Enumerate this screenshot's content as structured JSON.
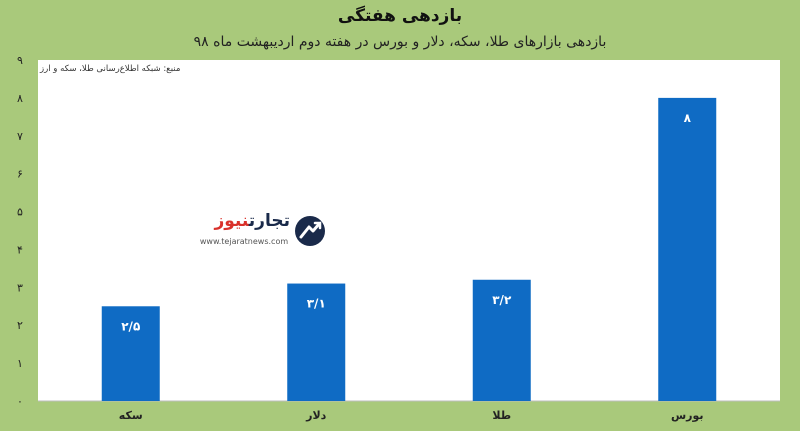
{
  "chart_data": {
    "type": "bar",
    "title": "بازدهی هفتگی",
    "subtitle": "بازدهی بازارهای طلا، سکه، دلار و بورس در هفته دوم اردیبهشت ماه ۹۸",
    "source_note": "منبع: شبکه اطلاع‌رسانی طلا، سکه و ارز",
    "categories": [
      "سکه",
      "دلار",
      "طلا",
      "بورس"
    ],
    "values": [
      2.5,
      3.1,
      3.2,
      8
    ],
    "data_labels": [
      "۲/۵",
      "۳/۱",
      "۳/۲",
      "۸"
    ],
    "ylim": [
      0,
      9
    ],
    "yticks": [
      0,
      1,
      2,
      3,
      4,
      5,
      6,
      7,
      8,
      9
    ],
    "ytick_labels": [
      "۰",
      "۱",
      "۲",
      "۳",
      "۴",
      "۵",
      "۶",
      "۷",
      "۸",
      "۹"
    ],
    "grid": false,
    "bar_color": "#0f6bc4",
    "plot_background": "#ffffff",
    "page_background": "#a9c97b",
    "xlabel": "",
    "ylabel": ""
  },
  "watermark": {
    "name_main": "تجارت",
    "name_accent": "نیوز",
    "url": "www.tejaratnews.com",
    "logo_icon": "tejaratnews-logo-icon",
    "accent_color": "#d9312b",
    "brand_color": "#1a2a4a"
  }
}
